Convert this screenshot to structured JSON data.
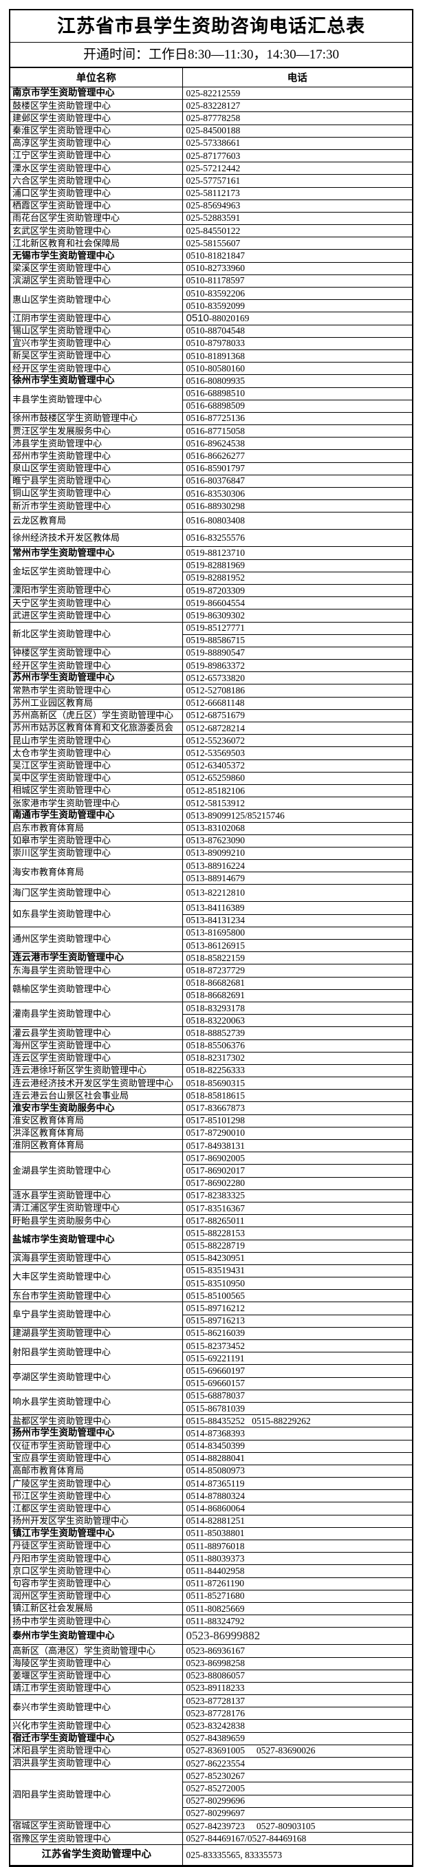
{
  "title": "江苏省市县学生资助咨询电话汇总表",
  "subtitle": "开通时间：工作日8:30—11:30，14:30—17:30",
  "table": {
    "columns": [
      "单位名称",
      "电话"
    ],
    "rows": [
      {
        "unit": "南京市学生资助管理中心",
        "bold": true,
        "phones": [
          "025-82212559"
        ]
      },
      {
        "unit": "鼓楼区学生资助管理中心",
        "phones": [
          "025-83228127"
        ]
      },
      {
        "unit": "建邺区学生资助管理中心",
        "phones": [
          "025-87778258"
        ]
      },
      {
        "unit": "秦淮区学生资助管理中心",
        "phones": [
          "025-84500188"
        ]
      },
      {
        "unit": "高淳区学生资助管理中心",
        "phones": [
          "025-57338661"
        ]
      },
      {
        "unit": "江宁区学生资助管理中心",
        "phones": [
          "025-87177603"
        ]
      },
      {
        "unit": "溧水区学生资助管理中心",
        "phones": [
          "025-57212442"
        ]
      },
      {
        "unit": "六合区学生资助管理中心",
        "phones": [
          "025-57757161"
        ]
      },
      {
        "unit": "浦口区学生资助管理中心",
        "phones": [
          "025-58112173"
        ]
      },
      {
        "unit": "栖霞区学生资助管理中心",
        "phones": [
          "025-85694963"
        ]
      },
      {
        "unit": "雨花台区学生资助管理中心",
        "phones": [
          "025-52883591"
        ]
      },
      {
        "unit": "玄武区学生资助管理中心",
        "phones": [
          "025-84550122"
        ]
      },
      {
        "unit": "江北新区教育和社会保障局",
        "phones": [
          "025-58155607"
        ]
      },
      {
        "unit": "无锡市学生资助管理中心",
        "bold": true,
        "phones": [
          "0510-81821847"
        ]
      },
      {
        "unit": "梁溪区学生资助管理中心",
        "phones": [
          "0510-82733960"
        ]
      },
      {
        "unit": "滨湖区学生资助管理中心",
        "phones": [
          "0510-81178597"
        ]
      },
      {
        "unit": "惠山区学生资助管理中心",
        "phones": [
          "0510-83592206",
          "0510-83592099"
        ]
      },
      {
        "unit": "江阴市学生资助管理中心",
        "phones": [
          "0510-88020169"
        ],
        "phone_style": "area-code-large"
      },
      {
        "unit": "锡山区学生资助管理中心",
        "phones": [
          "0510-88704548"
        ]
      },
      {
        "unit": "宜兴市学生资助管理中心",
        "phones": [
          "0510-87978033"
        ]
      },
      {
        "unit": "新吴区学生资助管理中心",
        "phones": [
          "0510-81891368"
        ]
      },
      {
        "unit": "经开区学生资助管理中心",
        "phones": [
          "0510-80580160"
        ]
      },
      {
        "unit": "徐州市学生资助管理中心",
        "bold": true,
        "phones": [
          "0516-80809935"
        ]
      },
      {
        "unit": "丰县学生资助管理中心",
        "phones": [
          "0516-68898510",
          "0516-68898509"
        ]
      },
      {
        "unit": "徐州市鼓楼区学生资助管理中心",
        "phones": [
          "0516-87725136"
        ]
      },
      {
        "unit": "贾汪区学生发展服务中心",
        "phones": [
          "0516-87715058"
        ]
      },
      {
        "unit": "沛县学生资助管理中心",
        "phones": [
          "0516-89624538"
        ]
      },
      {
        "unit": "邳州市学生资助管理中心",
        "phones": [
          "0516-86626277"
        ]
      },
      {
        "unit": "泉山区学生资助管理中心",
        "phones": [
          "0516-85901797"
        ]
      },
      {
        "unit": "睢宁县学生资助管理中心",
        "phones": [
          "0516-80376847"
        ]
      },
      {
        "unit": "铜山区学生资助管理中心",
        "phones": [
          "0516-83530306"
        ]
      },
      {
        "unit": "新沂市学生资助管理中心",
        "phones": [
          "0516-88930298"
        ]
      },
      {
        "unit": "云龙区教育局",
        "phones": [
          "0516-80803408"
        ],
        "tall": true
      },
      {
        "unit": "徐州经济技术开发区教体局",
        "phones": [
          "0516-83255576"
        ],
        "tall": true
      },
      {
        "unit": "常州市学生资助管理中心",
        "bold": true,
        "phones": [
          "0519-88123710"
        ]
      },
      {
        "unit": "金坛区学生资助管理中心",
        "phones": [
          "0519-82881969",
          "0519-82881952"
        ]
      },
      {
        "unit": "溧阳市学生资助管理中心",
        "phones": [
          "0519-87203309"
        ]
      },
      {
        "unit": "天宁区学生资助管理中心",
        "phones": [
          "0519-86604554"
        ]
      },
      {
        "unit": "武进区学生资助管理中心",
        "phones": [
          "0519-86309302"
        ]
      },
      {
        "unit": "新北区学生资助管理中心",
        "phones": [
          "0519-85127771",
          "0519-88586715"
        ]
      },
      {
        "unit": "钟楼区学生资助管理中心",
        "phones": [
          "0519-88890547"
        ]
      },
      {
        "unit": "经开区学生资助管理中心",
        "phones": [
          "0519-89863372"
        ]
      },
      {
        "unit": "苏州市学生资助管理中心",
        "bold": true,
        "phones": [
          "0512-65733820"
        ]
      },
      {
        "unit": "常熟市学生资助管理中心",
        "phones": [
          "0512-52708186"
        ]
      },
      {
        "unit": "苏州工业园区教育局",
        "phones": [
          "0512-66681148"
        ]
      },
      {
        "unit": "苏州高新区（虎丘区）学生资助管理中心",
        "phones": [
          "0512-68751679"
        ]
      },
      {
        "unit": "苏州市姑苏区教育体育和文化旅游委员会",
        "phones": [
          "0512-68728214"
        ]
      },
      {
        "unit": "昆山市学生资助管理中心",
        "phones": [
          "0512-55236072"
        ]
      },
      {
        "unit": "太仓市学生资助管理中心",
        "phones": [
          "0512-53569503"
        ]
      },
      {
        "unit": "吴江区学生资助管理中心",
        "phones": [
          "0512-63405372"
        ]
      },
      {
        "unit": "吴中区学生资助管理中心",
        "phones": [
          "0512-65259860"
        ]
      },
      {
        "unit": "相城区学生资助管理中心",
        "phones": [
          "0512-85182106"
        ]
      },
      {
        "unit": "张家港市学生资助管理中心",
        "phones": [
          "0512-58153912"
        ]
      },
      {
        "unit": "南通市学生资助管理中心",
        "bold": true,
        "phones": [
          "0513-89099125/85215746"
        ]
      },
      {
        "unit": "启东市教育体育局",
        "phones": [
          "0513-83102068"
        ]
      },
      {
        "unit": "如皋市学生资助管理中心",
        "phones": [
          "0513-87623090"
        ]
      },
      {
        "unit": "崇川区学生资助管理中心",
        "phones": [
          "0513-89099210"
        ]
      },
      {
        "unit": "海安市教育体育局",
        "phones": [
          "0513-88916224",
          "0513-88914679"
        ]
      },
      {
        "unit": "海门区学生资助管理中心",
        "phones": [
          "0513-82212810"
        ],
        "tall": true
      },
      {
        "unit": "如东县学生资助管理中心",
        "phones": [
          "0513-84116389",
          "0513-84131234"
        ]
      },
      {
        "unit": "通州区学生资助管理中心",
        "phones": [
          "0513-81695800",
          "0513-86126915"
        ]
      },
      {
        "unit": "连云港市学生资助管理中心",
        "bold": true,
        "phones": [
          "0518-85822159"
        ]
      },
      {
        "unit": "东海县学生资助管理中心",
        "phones": [
          "0518-87237729"
        ]
      },
      {
        "unit": "赣榆区学生资助管理中心",
        "phones": [
          "0518-86682681",
          "0518-86682691"
        ]
      },
      {
        "unit": "灌南县学生资助管理中心",
        "phones": [
          "0518-83293178",
          "0518-83220063"
        ]
      },
      {
        "unit": "灌云县学生资助管理中心",
        "phones": [
          "0518-88852739"
        ]
      },
      {
        "unit": "海州区学生资助管理中心",
        "phones": [
          "0518-85506376"
        ]
      },
      {
        "unit": "连云区学生资助管理中心",
        "phones": [
          "0518-82317302"
        ]
      },
      {
        "unit": "连云港徐圩新区学生资助管理中心",
        "phones": [
          "0518-82256333"
        ]
      },
      {
        "unit": "连云港经济技术开发区学生资助管理中心",
        "phones": [
          "0518-85690315"
        ]
      },
      {
        "unit": "连云港云台山景区社会事业局",
        "phones": [
          "0518-85818615"
        ]
      },
      {
        "unit": "淮安市学生资助服务中心",
        "bold": true,
        "phones": [
          "0517-83667873"
        ]
      },
      {
        "unit": "淮安区教育体育局",
        "phones": [
          "0517-85101298"
        ]
      },
      {
        "unit": "洪泽区教育体育局",
        "phones": [
          "0517-87290010"
        ]
      },
      {
        "unit": "淮阴区教育体育局",
        "phones": [
          "0517-84938131"
        ]
      },
      {
        "unit": "金湖县学生资助管理中心",
        "phones": [
          "0517-86902005",
          "0517-86902017",
          "0517-86902280"
        ]
      },
      {
        "unit": "涟水县学生资助管理中心",
        "phones": [
          "0517-82383325"
        ]
      },
      {
        "unit": "清江浦区学生资助管理中心",
        "phones": [
          "0517-83516367"
        ]
      },
      {
        "unit": "盱眙县学生资助服务中心",
        "phones": [
          "0517-88265011"
        ]
      },
      {
        "unit": "盐城市学生资助管理中心",
        "bold": true,
        "phones": [
          "0515-88228153",
          "0515-88228719"
        ]
      },
      {
        "unit": "滨海县学生资助管理中心",
        "phones": [
          "0515-84230951"
        ]
      },
      {
        "unit": "大丰区学生资助管理中心",
        "phones": [
          "0515-83519431",
          "0515-83510950"
        ]
      },
      {
        "unit": "东台市学生资助管理中心",
        "phones": [
          "0515-85100565"
        ]
      },
      {
        "unit": "阜宁县学生资助管理中心",
        "phones": [
          "0515-89716212",
          "0515-89716213"
        ]
      },
      {
        "unit": "建湖县学生资助管理中心",
        "phones": [
          "0515-86216039"
        ]
      },
      {
        "unit": "射阳县学生资助管理中心",
        "phones": [
          "0515-82373452",
          "0515-69221191"
        ]
      },
      {
        "unit": "亭湖区学生资助管理中心",
        "phones": [
          "0515-69660197",
          "0515-69660157"
        ]
      },
      {
        "unit": "响水县学生资助管理中心",
        "phones": [
          "0515-68878037",
          "0515-86781039"
        ]
      },
      {
        "unit": "盐都区学生资助管理中心",
        "phones": [
          "0515-88435252   0515-88229262"
        ]
      },
      {
        "unit": "扬州市学生资助管理中心",
        "bold": true,
        "phones": [
          "0514-87368393"
        ]
      },
      {
        "unit": "仪征市学生资助管理中心",
        "phones": [
          "0514-83450399"
        ]
      },
      {
        "unit": "宝应县学生资助管理中心",
        "phones": [
          "0514-88288041"
        ]
      },
      {
        "unit": "高邮市教育体育局",
        "phones": [
          "0514-85080973"
        ]
      },
      {
        "unit": "广陵区学生资助管理中心",
        "phones": [
          "0514-87365119"
        ]
      },
      {
        "unit": "邗江区学生资助管理中心",
        "phones": [
          "0514-87880324"
        ]
      },
      {
        "unit": "江都区学生资助管理中心",
        "phones": [
          "0514-86860064"
        ]
      },
      {
        "unit": "扬州开发区学生资助管理中心",
        "phones": [
          "0514-82881251"
        ]
      },
      {
        "unit": "镇江市学生资助管理中心",
        "bold": true,
        "phones": [
          "0511-85038801"
        ]
      },
      {
        "unit": "丹徒区学生资助管理中心",
        "phones": [
          "0511-88976018"
        ]
      },
      {
        "unit": "丹阳市学生资助管理中心",
        "phones": [
          "0511-88039373"
        ]
      },
      {
        "unit": "京口区学生资助管理中心",
        "phones": [
          "0511-84402958"
        ]
      },
      {
        "unit": "句容市学生资助管理中心",
        "phones": [
          "0511-87261190"
        ]
      },
      {
        "unit": "润州区学生资助管理中心",
        "phones": [
          "0511-85271680"
        ]
      },
      {
        "unit": "镇江新区社会发展局",
        "phones": [
          "0511-80825669"
        ]
      },
      {
        "unit": "扬中市学生资助管理中心",
        "phones": [
          "0511-88324792"
        ]
      },
      {
        "unit": "泰州市学生资助管理中心",
        "bold": true,
        "phones": [
          "0523-86999882"
        ],
        "phone_style": "large",
        "tall": true
      },
      {
        "unit": "高新区（高港区）学生资助管理中心",
        "phones": [
          "0523-86936167"
        ]
      },
      {
        "unit": "海陵区学生资助管理中心",
        "phones": [
          "0523-86998258"
        ]
      },
      {
        "unit": "姜堰区学生资助管理中心",
        "phones": [
          "0523-88086057"
        ]
      },
      {
        "unit": "靖江市学生资助管理中心",
        "phones": [
          "0523-89118233"
        ]
      },
      {
        "unit": "泰兴市学生资助管理中心",
        "phones": [
          "0523-87728137",
          "0523-87728176"
        ]
      },
      {
        "unit": "兴化市学生资助管理中心",
        "phones": [
          "0523-83242838"
        ]
      },
      {
        "unit": "宿迁市学生资助管理中心",
        "bold": true,
        "phones": [
          "0527-84389659"
        ]
      },
      {
        "unit": "沭阳县学生资助管理中心",
        "phones": [
          "0527-83691005     0527-83690026"
        ]
      },
      {
        "unit": "泗洪县学生资助管理中心",
        "phones": [
          "0527-86223554"
        ]
      },
      {
        "unit": "泗阳县学生资助管理中心",
        "phones": [
          "0527-85230267",
          "0527-85272005",
          "0527-80299696",
          "0527-80299697"
        ]
      },
      {
        "unit": "宿城区学生资助管理中心",
        "phones": [
          "0527-84239723     0527-80903105"
        ]
      },
      {
        "unit": "宿豫区学生资助管理中心",
        "phones": [
          "0527-84469167/0527-84469168"
        ]
      },
      {
        "unit": "江苏省学生资助管理中心",
        "bold": true,
        "center": true,
        "footer": true,
        "phones": [
          "025-83335565, 83335573"
        ]
      }
    ]
  }
}
